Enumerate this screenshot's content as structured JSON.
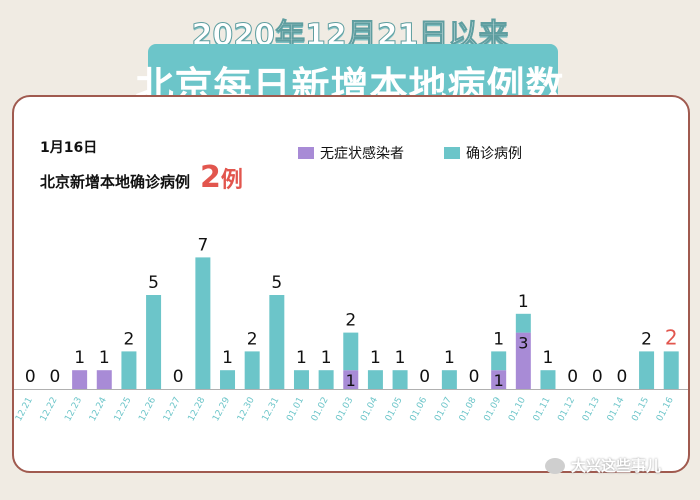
{
  "header": {
    "line1": "2020年12月21日以来",
    "line2": "北京每日新增本地病例数"
  },
  "note": {
    "date": "1月16日",
    "summary_text": "北京新增本地确诊病例",
    "summary_value": "2",
    "summary_unit": "例"
  },
  "legend": {
    "asymptomatic": "无症状感染者",
    "confirmed": "确诊病例"
  },
  "watermark": "大兴这些事儿",
  "colors": {
    "confirmed": "#6cc5c9",
    "asymptomatic": "#a88bd6",
    "highlight": "#e2564e"
  },
  "chart_data": {
    "type": "bar",
    "stacked": true,
    "categories": [
      "12.21",
      "12.22",
      "12.23",
      "12.24",
      "12.25",
      "12.26",
      "12.27",
      "12.28",
      "12.29",
      "12.30",
      "12.31",
      "01.01",
      "01.02",
      "01.03",
      "01.04",
      "01.05",
      "01.06",
      "01.07",
      "01.08",
      "01.09",
      "01.10",
      "01.11",
      "01.12",
      "01.13",
      "01.14",
      "01.15",
      "01.16"
    ],
    "series": [
      {
        "name": "无症状感染者",
        "values": [
          0,
          0,
          1,
          1,
          0,
          0,
          0,
          0,
          0,
          0,
          0,
          0,
          0,
          1,
          0,
          0,
          0,
          0,
          0,
          1,
          3,
          0,
          0,
          0,
          0,
          0,
          0
        ]
      },
      {
        "name": "确诊病例",
        "values": [
          0,
          0,
          0,
          0,
          2,
          5,
          0,
          7,
          1,
          2,
          5,
          1,
          1,
          2,
          1,
          1,
          0,
          1,
          0,
          1,
          1,
          1,
          0,
          0,
          0,
          2,
          2
        ]
      }
    ],
    "label_rule": "confirmed value printed above bar; asymptomatic value printed inside its segment when both present",
    "highlight_category": "01.16",
    "ylim": [
      0,
      7
    ]
  }
}
